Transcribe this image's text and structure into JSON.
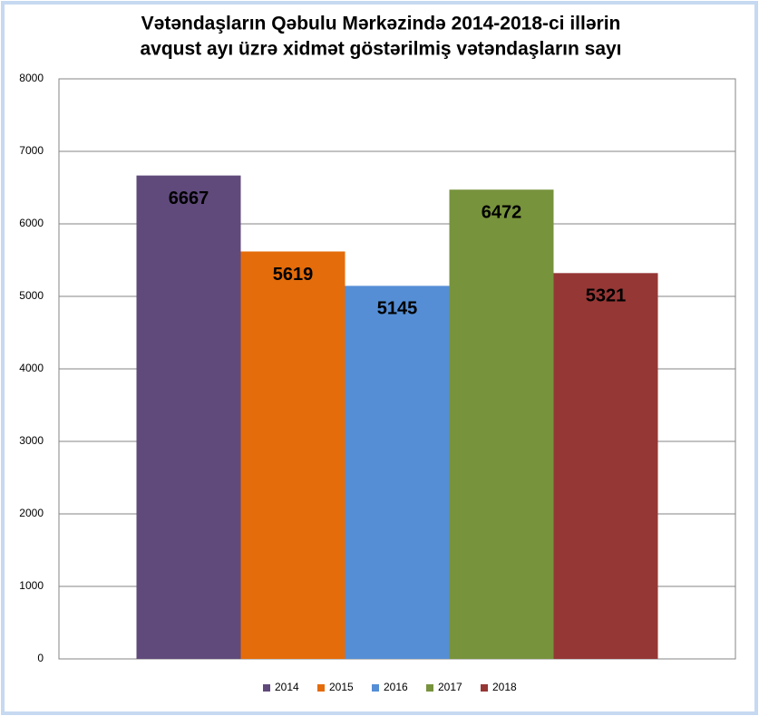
{
  "chart_data": {
    "type": "bar",
    "title": [
      "Vətəndaşların Qəbulu  Mərkəzində 2014-2018-ci  illərin",
      "avqust  ayı üzrə  xidmət  göstərilmiş vətəndaşların sayı"
    ],
    "categories": [
      null
    ],
    "series": [
      {
        "name": "2014",
        "color": "#604a7b",
        "values": [
          6667
        ]
      },
      {
        "name": "2015",
        "color": "#e46c0a",
        "values": [
          5619
        ]
      },
      {
        "name": "2016",
        "color": "#558ed5",
        "values": [
          5145
        ]
      },
      {
        "name": "2017",
        "color": "#77933c",
        "values": [
          6472
        ]
      },
      {
        "name": "2018",
        "color": "#953735",
        "values": [
          5321
        ]
      }
    ],
    "ylim": [
      0,
      8000
    ],
    "yticks": [
      0,
      1000,
      2000,
      3000,
      4000,
      5000,
      6000,
      7000,
      8000
    ],
    "grid": true,
    "legend": "bottom"
  }
}
